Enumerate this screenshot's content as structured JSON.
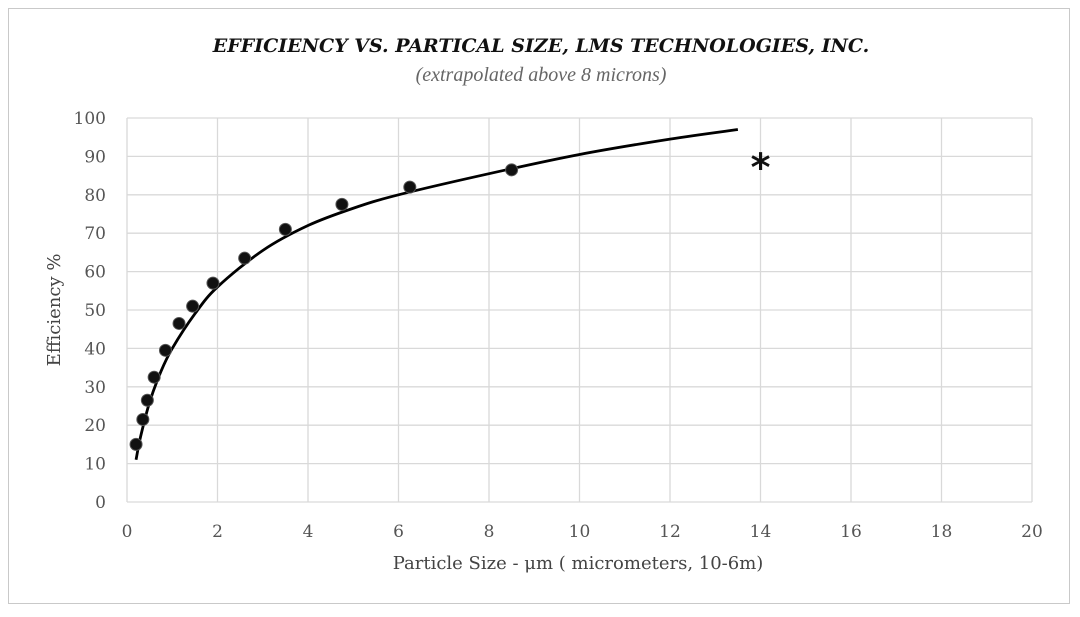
{
  "chart_data": {
    "type": "scatter",
    "title": "EFFICIENCY VS. PARTICAL SIZE, LMS TECHNOLOGIES, INC.",
    "subtitle": "(extrapolated above 8 microns)",
    "xlabel": "Particle Size - μm ( micrometers, 10-6m)",
    "ylabel": "Efficiency  %",
    "xlim": [
      0,
      20
    ],
    "ylim": [
      0,
      100
    ],
    "x_ticks": [
      "0",
      "2",
      "4",
      "6",
      "8",
      "10",
      "12",
      "14",
      "16",
      "18",
      "20"
    ],
    "y_ticks": [
      "0",
      "10",
      "20",
      "30",
      "40",
      "50",
      "60",
      "70",
      "80",
      "90",
      "100"
    ],
    "grid": true,
    "series": [
      {
        "points": [
          {
            "x": 0.2,
            "y": 15
          },
          {
            "x": 0.35,
            "y": 21.5
          },
          {
            "x": 0.45,
            "y": 26.5
          },
          {
            "x": 0.6,
            "y": 32.5
          },
          {
            "x": 0.85,
            "y": 39.5
          },
          {
            "x": 1.15,
            "y": 46.5
          },
          {
            "x": 1.45,
            "y": 51
          },
          {
            "x": 1.9,
            "y": 57
          },
          {
            "x": 2.6,
            "y": 63.5
          },
          {
            "x": 3.5,
            "y": 71
          },
          {
            "x": 4.75,
            "y": 77.5
          },
          {
            "x": 6.25,
            "y": 82
          },
          {
            "x": 8.5,
            "y": 86.5
          }
        ]
      }
    ],
    "trendline": {
      "type": "fitted curve",
      "points": [
        {
          "x": 0.2,
          "y": 11
        },
        {
          "x": 0.3,
          "y": 17
        },
        {
          "x": 0.5,
          "y": 26
        },
        {
          "x": 0.75,
          "y": 34
        },
        {
          "x": 1,
          "y": 40
        },
        {
          "x": 1.5,
          "y": 49
        },
        {
          "x": 2,
          "y": 56
        },
        {
          "x": 3,
          "y": 65.5
        },
        {
          "x": 4,
          "y": 72
        },
        {
          "x": 5,
          "y": 76.5
        },
        {
          "x": 6,
          "y": 80
        },
        {
          "x": 8,
          "y": 85.5
        },
        {
          "x": 10,
          "y": 90.5
        },
        {
          "x": 12,
          "y": 94.5
        },
        {
          "x": 13.5,
          "y": 97
        }
      ]
    },
    "annotation": {
      "text": "*",
      "x": 14,
      "y": 90
    }
  }
}
